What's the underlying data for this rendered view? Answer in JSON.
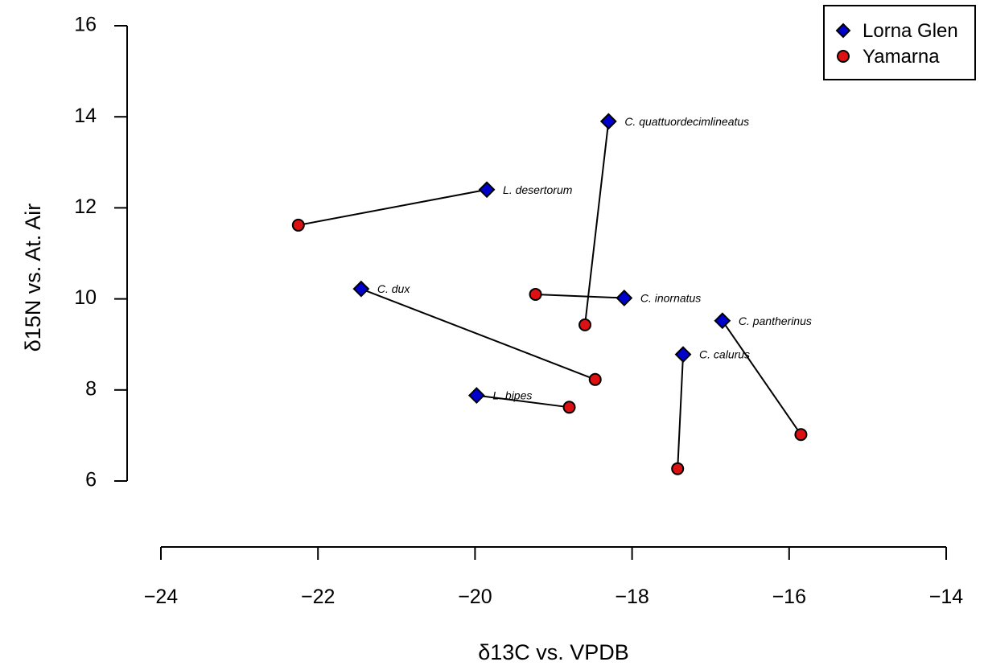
{
  "chart_data": {
    "type": "scatter",
    "xlabel": "δ13C vs. VPDB",
    "ylabel": "δ15N vs. At. Air",
    "xlim": [
      -24,
      -14
    ],
    "ylim": [
      6,
      16
    ],
    "x_ticks": [
      -24,
      -22,
      -20,
      -18,
      -16,
      -14
    ],
    "y_ticks": [
      6,
      8,
      10,
      12,
      14,
      16
    ],
    "x_tick_labels": [
      "−24",
      "−22",
      "−20",
      "−18",
      "−16",
      "−14"
    ],
    "y_tick_labels": [
      "6",
      "8",
      "10",
      "12",
      "14",
      "16"
    ],
    "grid": false,
    "legend_position": "top-right",
    "series": [
      {
        "name": "Lorna Glen",
        "marker": "diamond",
        "color": "#0000cc",
        "points": [
          {
            "label": "C. quattuordecimlineatus",
            "x": -18.3,
            "y": 13.9
          },
          {
            "label": "L. desertorum",
            "x": -19.85,
            "y": 12.4
          },
          {
            "label": "C. dux",
            "x": -21.45,
            "y": 10.22
          },
          {
            "label": "C. inornatus",
            "x": -18.1,
            "y": 10.02
          },
          {
            "label": "C. pantherinus",
            "x": -16.85,
            "y": 9.52
          },
          {
            "label": "C. calurus",
            "x": -17.35,
            "y": 8.78
          },
          {
            "label": "L. bipes",
            "x": -19.98,
            "y": 7.88
          }
        ]
      },
      {
        "name": "Yamarna",
        "marker": "circle",
        "color": "#dd1111",
        "points": [
          {
            "x": -18.6,
            "y": 9.43
          },
          {
            "x": -22.25,
            "y": 11.62
          },
          {
            "x": -18.47,
            "y": 8.23
          },
          {
            "x": -19.23,
            "y": 10.1
          },
          {
            "x": -15.85,
            "y": 7.02
          },
          {
            "x": -17.42,
            "y": 6.27
          },
          {
            "x": -18.8,
            "y": 7.62
          }
        ]
      }
    ]
  }
}
